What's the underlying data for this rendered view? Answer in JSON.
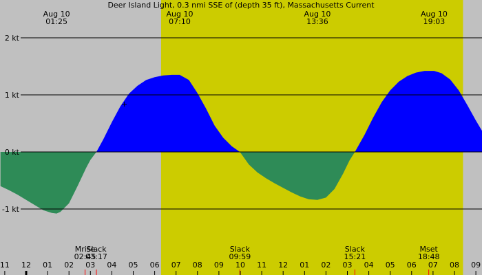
{
  "chart_data": {
    "type": "area",
    "title": "Deer Island Light, 0.3 nmi SSE of (depth 35 ft), Massachusetts Current",
    "xlabel": "",
    "ylabel": "",
    "units": "kt",
    "xlim_hours": [
      23.0,
      33.5
    ],
    "ylim": [
      -1.4,
      2.2
    ],
    "y_ticks": [
      {
        "value": 2,
        "label": "2 kt"
      },
      {
        "value": 1,
        "label": "1 kt"
      },
      {
        "value": 0,
        "label": "0 kt"
      },
      {
        "value": -1,
        "label": "-1 kt"
      }
    ],
    "grid": true,
    "colors": {
      "background": "#c0c0c0",
      "daylight": "#cccc00",
      "flood": "#0000ff",
      "ebb": "#2e8b57",
      "tick_marker": "#ff0000"
    },
    "daylight_hours": [
      6.3,
      20.4
    ],
    "extremes": [
      {
        "date": "Aug 10",
        "time": "01:25",
        "hour": 1.42,
        "value": -1.08
      },
      {
        "date": "Aug 10",
        "time": "07:10",
        "hour": 7.17,
        "value": 1.35
      },
      {
        "date": "Aug 10",
        "time": "13:36",
        "hour": 13.6,
        "value": -0.84
      },
      {
        "date": "Aug 10",
        "time": "19:03",
        "hour": 19.05,
        "value": 1.42
      }
    ],
    "events": [
      {
        "label": "Mrise",
        "time": "02:45",
        "hour": 2.75
      },
      {
        "label": "Slack",
        "time": "03:17",
        "hour": 3.28
      },
      {
        "label": "Slack",
        "time": "09:59",
        "hour": 9.98
      },
      {
        "label": "Slack",
        "time": "15:21",
        "hour": 15.35
      },
      {
        "label": "Mset",
        "time": "18:48",
        "hour": 18.8
      }
    ],
    "x_ticks": [
      {
        "hour": -1,
        "label": "11"
      },
      {
        "hour": 0,
        "label": "12"
      },
      {
        "hour": 1,
        "label": "01"
      },
      {
        "hour": 2,
        "label": "02"
      },
      {
        "hour": 3,
        "label": "03"
      },
      {
        "hour": 4,
        "label": "04"
      },
      {
        "hour": 5,
        "label": "05"
      },
      {
        "hour": 6,
        "label": "06"
      },
      {
        "hour": 7,
        "label": "07"
      },
      {
        "hour": 8,
        "label": "08"
      },
      {
        "hour": 9,
        "label": "09"
      },
      {
        "hour": 10,
        "label": "10"
      },
      {
        "hour": 11,
        "label": "11"
      },
      {
        "hour": 12,
        "label": "12"
      },
      {
        "hour": 13,
        "label": "01"
      },
      {
        "hour": 14,
        "label": "02"
      },
      {
        "hour": 15,
        "label": "03"
      },
      {
        "hour": 16,
        "label": "04"
      },
      {
        "hour": 17,
        "label": "05"
      },
      {
        "hour": 18,
        "label": "06"
      },
      {
        "hour": 19,
        "label": "07"
      },
      {
        "hour": 20,
        "label": "08"
      },
      {
        "hour": 21,
        "label": "09"
      }
    ],
    "series": [
      {
        "hours": [
          -1.2,
          -0.8,
          -0.4,
          0.0,
          0.4,
          0.8,
          1.2,
          1.42,
          1.6,
          2.0,
          2.4,
          2.8,
          3.0,
          3.28,
          3.6,
          4.0,
          4.4,
          4.8,
          5.2,
          5.6,
          6.0,
          6.4,
          6.8,
          7.17,
          7.6,
          8.0,
          8.4,
          8.8,
          9.2,
          9.6,
          9.98,
          10.4,
          10.8,
          11.2,
          11.6,
          12.0,
          12.4,
          12.8,
          13.2,
          13.6,
          14.0,
          14.4,
          14.8,
          15.1,
          15.35,
          15.8,
          16.2,
          16.6,
          17.0,
          17.4,
          17.8,
          18.2,
          18.6,
          19.05,
          19.4,
          19.8,
          20.2,
          20.6,
          21.0,
          21.4,
          21.8
        ],
        "values": [
          -0.6,
          -0.67,
          -0.75,
          -0.84,
          -0.93,
          -1.02,
          -1.07,
          -1.08,
          -1.05,
          -0.9,
          -0.6,
          -0.28,
          -0.14,
          0.0,
          0.22,
          0.52,
          0.8,
          1.02,
          1.16,
          1.26,
          1.31,
          1.34,
          1.35,
          1.35,
          1.26,
          1.03,
          0.76,
          0.46,
          0.25,
          0.1,
          0.0,
          -0.22,
          -0.36,
          -0.46,
          -0.55,
          -0.63,
          -0.71,
          -0.78,
          -0.83,
          -0.84,
          -0.8,
          -0.65,
          -0.38,
          -0.15,
          0.0,
          0.3,
          0.6,
          0.87,
          1.08,
          1.23,
          1.33,
          1.39,
          1.42,
          1.42,
          1.38,
          1.27,
          1.08,
          0.82,
          0.55,
          0.3,
          0.1
        ]
      }
    ]
  }
}
